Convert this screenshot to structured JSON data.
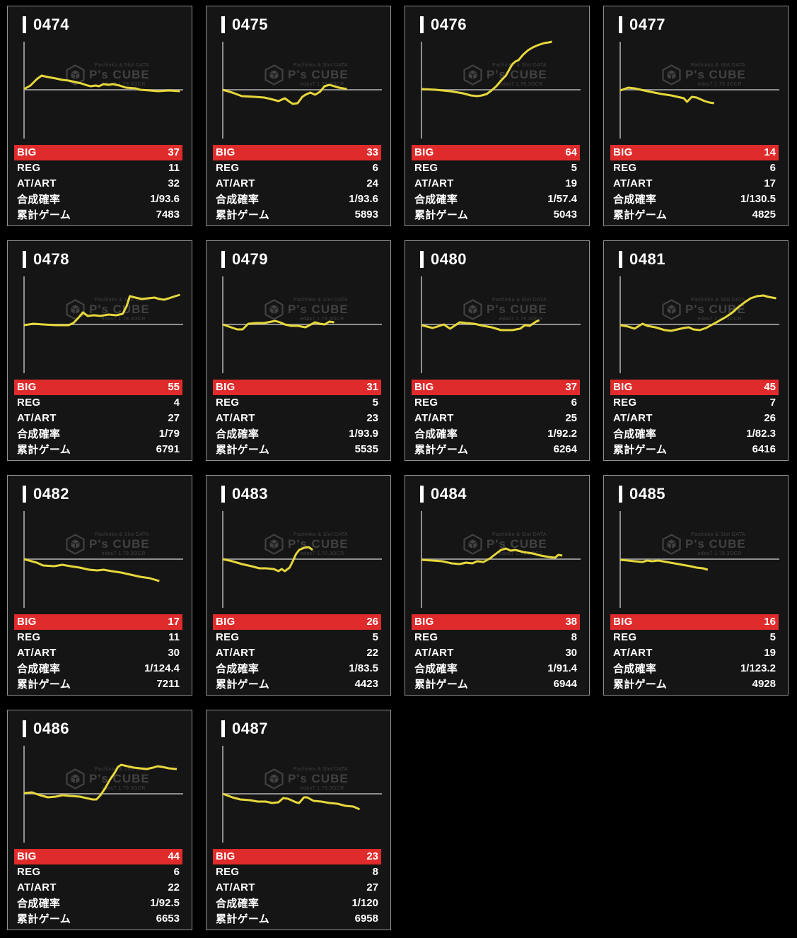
{
  "labels": {
    "big": "BIG",
    "reg": "REG",
    "at_art": "AT/ART",
    "combined_rate": "合成確率",
    "total_games": "累計ゲーム"
  },
  "watermark": {
    "top_text": "Pachinko & Slot DATA",
    "brand": "P's CUBE",
    "bottom_text": "edas7 1.79.3OCR"
  },
  "colors": {
    "page_bg": "#000000",
    "card_bg": "#151515",
    "card_border": "#8f8f8f",
    "accent_red": "#df2b2b",
    "line_yellow": "#e6d73c",
    "axis_gray": "#8f8f8f",
    "watermark_gray": "#414141",
    "text_white": "#ffffff"
  },
  "machines": [
    {
      "id": "0474",
      "big": 37,
      "reg": 11,
      "at_art": 32,
      "rate": "1/93.6",
      "games": 7483,
      "line": [
        [
          0,
          1
        ],
        [
          0.04,
          6
        ],
        [
          0.08,
          15
        ],
        [
          0.11,
          20
        ],
        [
          0.15,
          18
        ],
        [
          0.2,
          16
        ],
        [
          0.24,
          14
        ],
        [
          0.28,
          13
        ],
        [
          0.32,
          11
        ],
        [
          0.36,
          9
        ],
        [
          0.4,
          6
        ],
        [
          0.42,
          5
        ],
        [
          0.45,
          6
        ],
        [
          0.47,
          5
        ],
        [
          0.5,
          8
        ],
        [
          0.53,
          7
        ],
        [
          0.56,
          8
        ],
        [
          0.6,
          6
        ],
        [
          0.64,
          3
        ],
        [
          0.7,
          2
        ],
        [
          0.73,
          0
        ],
        [
          0.79,
          -1
        ],
        [
          0.84,
          -2
        ],
        [
          0.91,
          -1
        ],
        [
          0.98,
          -2
        ]
      ]
    },
    {
      "id": "0475",
      "big": 33,
      "reg": 6,
      "at_art": 24,
      "rate": "1/93.6",
      "games": 5893,
      "line": [
        [
          0,
          0
        ],
        [
          0.06,
          -4
        ],
        [
          0.12,
          -9
        ],
        [
          0.2,
          -10
        ],
        [
          0.26,
          -11
        ],
        [
          0.3,
          -13
        ],
        [
          0.35,
          -16
        ],
        [
          0.39,
          -12
        ],
        [
          0.42,
          -17
        ],
        [
          0.44,
          -20
        ],
        [
          0.47,
          -19
        ],
        [
          0.5,
          -10
        ],
        [
          0.52,
          -7
        ],
        [
          0.55,
          -4
        ],
        [
          0.58,
          -7
        ],
        [
          0.61,
          -3
        ],
        [
          0.64,
          5
        ],
        [
          0.67,
          7
        ],
        [
          0.7,
          5
        ],
        [
          0.73,
          3
        ],
        [
          0.78,
          1
        ]
      ]
    },
    {
      "id": "0476",
      "big": 64,
      "reg": 5,
      "at_art": 19,
      "rate": "1/57.4",
      "games": 5043,
      "line": [
        [
          0,
          1
        ],
        [
          0.09,
          0
        ],
        [
          0.18,
          -2
        ],
        [
          0.26,
          -5
        ],
        [
          0.31,
          -8
        ],
        [
          0.35,
          -9
        ],
        [
          0.38,
          -8
        ],
        [
          0.41,
          -6
        ],
        [
          0.44,
          -1
        ],
        [
          0.47,
          5
        ],
        [
          0.5,
          13
        ],
        [
          0.53,
          20
        ],
        [
          0.55,
          28
        ],
        [
          0.57,
          36
        ],
        [
          0.59,
          40
        ],
        [
          0.61,
          42
        ],
        [
          0.64,
          50
        ],
        [
          0.67,
          56
        ],
        [
          0.7,
          60
        ],
        [
          0.73,
          63
        ],
        [
          0.77,
          66
        ],
        [
          0.8,
          67
        ],
        [
          0.82,
          68
        ]
      ]
    },
    {
      "id": "0477",
      "big": 14,
      "reg": 6,
      "at_art": 17,
      "rate": "1/130.5",
      "games": 4825,
      "line": [
        [
          0,
          -1
        ],
        [
          0.05,
          3
        ],
        [
          0.09,
          2
        ],
        [
          0.17,
          -2
        ],
        [
          0.26,
          -6
        ],
        [
          0.32,
          -8
        ],
        [
          0.4,
          -12
        ],
        [
          0.42,
          -17
        ],
        [
          0.45,
          -10
        ],
        [
          0.48,
          -11
        ],
        [
          0.53,
          -16
        ],
        [
          0.56,
          -18
        ],
        [
          0.59,
          -19
        ]
      ]
    },
    {
      "id": "0478",
      "big": 55,
      "reg": 4,
      "at_art": 27,
      "rate": "1/79",
      "games": 6791,
      "line": [
        [
          0,
          -1
        ],
        [
          0.06,
          1
        ],
        [
          0.12,
          0
        ],
        [
          0.2,
          -1
        ],
        [
          0.28,
          -1
        ],
        [
          0.31,
          2
        ],
        [
          0.34,
          9
        ],
        [
          0.37,
          17
        ],
        [
          0.4,
          12
        ],
        [
          0.44,
          13
        ],
        [
          0.48,
          12
        ],
        [
          0.53,
          14
        ],
        [
          0.58,
          13
        ],
        [
          0.62,
          15
        ],
        [
          0.645,
          26
        ],
        [
          0.665,
          40
        ],
        [
          0.7,
          38
        ],
        [
          0.74,
          36
        ],
        [
          0.78,
          37
        ],
        [
          0.82,
          38
        ],
        [
          0.85,
          36
        ],
        [
          0.88,
          35
        ],
        [
          0.91,
          37
        ],
        [
          0.95,
          40
        ],
        [
          0.98,
          42
        ]
      ]
    },
    {
      "id": "0479",
      "big": 31,
      "reg": 5,
      "at_art": 23,
      "rate": "1/93.9",
      "games": 5535,
      "line": [
        [
          0,
          0
        ],
        [
          0.09,
          -7
        ],
        [
          0.125,
          -7
        ],
        [
          0.16,
          1
        ],
        [
          0.21,
          2
        ],
        [
          0.26,
          2
        ],
        [
          0.33,
          5
        ],
        [
          0.36,
          3
        ],
        [
          0.39,
          0
        ],
        [
          0.43,
          -2
        ],
        [
          0.47,
          -2
        ],
        [
          0.52,
          -4
        ],
        [
          0.58,
          3
        ],
        [
          0.61,
          1
        ],
        [
          0.64,
          0
        ],
        [
          0.67,
          4
        ],
        [
          0.7,
          3
        ]
      ]
    },
    {
      "id": "0480",
      "big": 37,
      "reg": 6,
      "at_art": 25,
      "rate": "1/92.2",
      "games": 6264,
      "line": [
        [
          0,
          -1
        ],
        [
          0.07,
          -5
        ],
        [
          0.1,
          -3
        ],
        [
          0.14,
          0
        ],
        [
          0.18,
          -6
        ],
        [
          0.24,
          3
        ],
        [
          0.28,
          2
        ],
        [
          0.33,
          1
        ],
        [
          0.39,
          -2
        ],
        [
          0.44,
          -4
        ],
        [
          0.5,
          -8
        ],
        [
          0.57,
          -8
        ],
        [
          0.62,
          -6
        ],
        [
          0.65,
          -1
        ],
        [
          0.68,
          -2
        ],
        [
          0.72,
          4
        ],
        [
          0.74,
          6
        ]
      ]
    },
    {
      "id": "0481",
      "big": 45,
      "reg": 7,
      "at_art": 26,
      "rate": "1/82.3",
      "games": 6416,
      "line": [
        [
          0,
          -1
        ],
        [
          0.05,
          -3
        ],
        [
          0.09,
          -6
        ],
        [
          0.14,
          1
        ],
        [
          0.17,
          -2
        ],
        [
          0.22,
          -4
        ],
        [
          0.28,
          -8
        ],
        [
          0.32,
          -9
        ],
        [
          0.36,
          -7
        ],
        [
          0.4,
          -5
        ],
        [
          0.43,
          -4
        ],
        [
          0.46,
          -7
        ],
        [
          0.5,
          -8
        ],
        [
          0.54,
          -5
        ],
        [
          0.58,
          0
        ],
        [
          0.62,
          5
        ],
        [
          0.66,
          10
        ],
        [
          0.7,
          16
        ],
        [
          0.74,
          24
        ],
        [
          0.78,
          31
        ],
        [
          0.82,
          37
        ],
        [
          0.86,
          40
        ],
        [
          0.9,
          41
        ],
        [
          0.93,
          39
        ],
        [
          0.98,
          37
        ]
      ]
    },
    {
      "id": "0482",
      "big": 17,
      "reg": 11,
      "at_art": 30,
      "rate": "1/124.4",
      "games": 7211,
      "line": [
        [
          0,
          0
        ],
        [
          0.08,
          -5
        ],
        [
          0.12,
          -9
        ],
        [
          0.19,
          -10
        ],
        [
          0.24,
          -8
        ],
        [
          0.29,
          -10
        ],
        [
          0.35,
          -12
        ],
        [
          0.41,
          -15
        ],
        [
          0.46,
          -16
        ],
        [
          0.5,
          -15
        ],
        [
          0.55,
          -17
        ],
        [
          0.61,
          -19
        ],
        [
          0.67,
          -22
        ],
        [
          0.73,
          -25
        ],
        [
          0.79,
          -27
        ],
        [
          0.82,
          -29
        ],
        [
          0.85,
          -31
        ]
      ]
    },
    {
      "id": "0483",
      "big": 26,
      "reg": 5,
      "at_art": 22,
      "rate": "1/83.5",
      "games": 4423,
      "line": [
        [
          0,
          0
        ],
        [
          0.06,
          -3
        ],
        [
          0.12,
          -7
        ],
        [
          0.18,
          -10
        ],
        [
          0.23,
          -13
        ],
        [
          0.27,
          -13
        ],
        [
          0.32,
          -14
        ],
        [
          0.35,
          -17
        ],
        [
          0.37,
          -14
        ],
        [
          0.39,
          -17
        ],
        [
          0.42,
          -12
        ],
        [
          0.44,
          -3
        ],
        [
          0.46,
          7
        ],
        [
          0.48,
          13
        ],
        [
          0.51,
          16
        ],
        [
          0.54,
          17
        ],
        [
          0.565,
          13
        ]
      ]
    },
    {
      "id": "0484",
      "big": 38,
      "reg": 8,
      "at_art": 30,
      "rate": "1/91.4",
      "games": 6944,
      "line": [
        [
          0,
          -1
        ],
        [
          0.07,
          -2
        ],
        [
          0.13,
          -3
        ],
        [
          0.19,
          -6
        ],
        [
          0.24,
          -7
        ],
        [
          0.28,
          -5
        ],
        [
          0.32,
          -6
        ],
        [
          0.35,
          -3
        ],
        [
          0.39,
          -4
        ],
        [
          0.43,
          1
        ],
        [
          0.47,
          8
        ],
        [
          0.5,
          13
        ],
        [
          0.53,
          15
        ],
        [
          0.56,
          12
        ],
        [
          0.59,
          13
        ],
        [
          0.64,
          10
        ],
        [
          0.7,
          8
        ],
        [
          0.75,
          5
        ],
        [
          0.8,
          3
        ],
        [
          0.84,
          2
        ],
        [
          0.86,
          6
        ],
        [
          0.885,
          5
        ]
      ]
    },
    {
      "id": "0485",
      "big": 16,
      "reg": 5,
      "at_art": 19,
      "rate": "1/123.2",
      "games": 4928,
      "line": [
        [
          0,
          -1
        ],
        [
          0.05,
          -2
        ],
        [
          0.09,
          -3
        ],
        [
          0.14,
          -4
        ],
        [
          0.17,
          -2
        ],
        [
          0.2,
          -3
        ],
        [
          0.24,
          -2
        ],
        [
          0.29,
          -4
        ],
        [
          0.34,
          -6
        ],
        [
          0.39,
          -8
        ],
        [
          0.44,
          -10
        ],
        [
          0.48,
          -12
        ],
        [
          0.52,
          -13
        ],
        [
          0.55,
          -15
        ]
      ]
    },
    {
      "id": "0486",
      "big": 44,
      "reg": 6,
      "at_art": 22,
      "rate": "1/92.5",
      "games": 6653,
      "line": [
        [
          0,
          1
        ],
        [
          0.05,
          2
        ],
        [
          0.1,
          -2
        ],
        [
          0.15,
          -5
        ],
        [
          0.2,
          -4
        ],
        [
          0.24,
          -2
        ],
        [
          0.29,
          -3
        ],
        [
          0.35,
          -4
        ],
        [
          0.39,
          -6
        ],
        [
          0.43,
          -8
        ],
        [
          0.455,
          -8
        ],
        [
          0.48,
          -2
        ],
        [
          0.51,
          8
        ],
        [
          0.54,
          20
        ],
        [
          0.57,
          30
        ],
        [
          0.59,
          38
        ],
        [
          0.61,
          41
        ],
        [
          0.65,
          39
        ],
        [
          0.69,
          37
        ],
        [
          0.73,
          36
        ],
        [
          0.77,
          35
        ],
        [
          0.81,
          37
        ],
        [
          0.84,
          39
        ],
        [
          0.87,
          38
        ],
        [
          0.91,
          36
        ],
        [
          0.96,
          35
        ]
      ]
    },
    {
      "id": "0487",
      "big": 23,
      "reg": 8,
      "at_art": 27,
      "rate": "1/120",
      "games": 6958,
      "line": [
        [
          0,
          0
        ],
        [
          0.06,
          -5
        ],
        [
          0.11,
          -8
        ],
        [
          0.17,
          -9
        ],
        [
          0.22,
          -11
        ],
        [
          0.27,
          -11
        ],
        [
          0.31,
          -13
        ],
        [
          0.35,
          -12
        ],
        [
          0.38,
          -6
        ],
        [
          0.41,
          -7
        ],
        [
          0.46,
          -12
        ],
        [
          0.48,
          -13
        ],
        [
          0.51,
          -5
        ],
        [
          0.53,
          -5
        ],
        [
          0.57,
          -10
        ],
        [
          0.62,
          -11
        ],
        [
          0.67,
          -13
        ],
        [
          0.72,
          -14
        ],
        [
          0.77,
          -17
        ],
        [
          0.82,
          -18
        ],
        [
          0.85,
          -21
        ],
        [
          0.86,
          -22
        ]
      ]
    }
  ]
}
